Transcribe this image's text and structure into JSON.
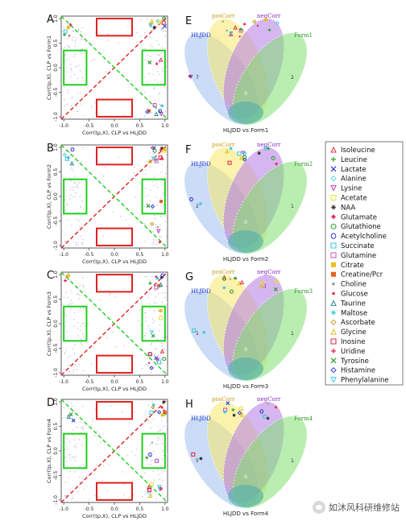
{
  "scatter_panels": [
    {
      "letter": "A",
      "xlabel": "Corr(tp,X), CLP vs HLJDD",
      "ylabel": "Corr(tp,X), CLP vs Form1",
      "ticks_x": [
        "-1.0",
        "-0.5",
        "0.0",
        "0.5",
        "1.0"
      ],
      "ticks_y": [
        "-1.0",
        "-0.5",
        "0.0",
        "0.5",
        "1.0"
      ]
    },
    {
      "letter": "B",
      "xlabel": "Corr(tp,X), CLP vs HLJDD",
      "ylabel": "Corr(tp,X), CLP vs Form2",
      "ticks_x": [
        "-1.0",
        "-0.5",
        "0.0",
        "0.5",
        "1.0"
      ],
      "ticks_y": [
        "-1.0",
        "-0.5",
        "0.0",
        "0.5",
        "1.0"
      ]
    },
    {
      "letter": "C",
      "xlabel": "Corr(tp,X), CLP vs HLJDD",
      "ylabel": "Corr(tp,X), CLP vs Form3",
      "ticks_x": [
        "-1.0",
        "-0.5",
        "0.0",
        "0.5",
        "1.0"
      ],
      "ticks_y": [
        "-1.0",
        "-0.5",
        "0.0",
        "0.5",
        "1.0"
      ]
    },
    {
      "letter": "D",
      "xlabel": "Corr(tp,X), CLP vs HLJDD",
      "ylabel": "Corr(tp,X), CLP vs Form4",
      "ticks_x": [
        "-1.0",
        "-0.5",
        "0.0",
        "0.5",
        "1.0"
      ],
      "ticks_y": [
        "-1.0",
        "-0.5",
        "0.0",
        "0.5",
        "1.0"
      ]
    }
  ],
  "venn_panels": [
    {
      "letter": "E",
      "left": "HLJDD",
      "pos": "posCorr",
      "neg": "negCorr",
      "right": "Form1",
      "caption": "HLJDD vs Form1"
    },
    {
      "letter": "F",
      "left": "HLJDD",
      "pos": "posCorr",
      "neg": "negCorr",
      "right": "Form2",
      "caption": "HLJDD vs Form2"
    },
    {
      "letter": "G",
      "left": "HLJDD",
      "pos": "posCorr",
      "neg": "negCorr",
      "right": "Form3",
      "caption": "HLJDD vs Form3"
    },
    {
      "letter": "H",
      "left": "HLJDD",
      "pos": "posCorr",
      "neg": "negCorr",
      "right": "Form4",
      "caption": "HLJDD vs Form4"
    }
  ],
  "venn_counts": [
    {
      "hljdd": "7",
      "form": "2",
      "center": "0"
    },
    {
      "hljdd": "2",
      "form": "1",
      "center": "0"
    },
    {
      "hljdd": "1",
      "form": "1",
      "center": "0"
    },
    {
      "hljdd": "5",
      "form": "1",
      "center": "0"
    }
  ],
  "legend": [
    {
      "name": "Isoleucine",
      "sym": "tri",
      "color": "#e8324a"
    },
    {
      "name": "Leucine",
      "sym": "plus",
      "color": "#2aa02a"
    },
    {
      "name": "Lactate",
      "sym": "x",
      "color": "#2e3fd0"
    },
    {
      "name": "Alanine",
      "sym": "diamond",
      "color": "#52d0e0"
    },
    {
      "name": "Lysine",
      "sym": "tridown",
      "color": "#c040c0"
    },
    {
      "name": "Acetate",
      "sym": "square",
      "color": "#e8e030"
    },
    {
      "name": "NAA",
      "sym": "star",
      "color": "#333333"
    },
    {
      "name": "Glutamate",
      "sym": "dfill",
      "color": "#e83060"
    },
    {
      "name": "Glutathione",
      "sym": "circle",
      "color": "#2a9a2a"
    },
    {
      "name": "Acetylcholine",
      "sym": "hex",
      "color": "#3a3ad8"
    },
    {
      "name": "Succinate",
      "sym": "square",
      "color": "#36c6d8"
    },
    {
      "name": "Glutamine",
      "sym": "square",
      "color": "#c050c8"
    },
    {
      "name": "Citrate",
      "sym": "sqfill",
      "color": "#e8c020"
    },
    {
      "name": "Creatine/Pcr",
      "sym": "sqfill",
      "color": "#e86020"
    },
    {
      "name": "Choline",
      "sym": "dot",
      "color": "#999999"
    },
    {
      "name": "Glucose",
      "sym": "dot",
      "color": "#e03050"
    },
    {
      "name": "Taurine",
      "sym": "tri",
      "color": "#2a8a8a"
    },
    {
      "name": "Maltose",
      "sym": "star",
      "color": "#40c8e0"
    },
    {
      "name": "Ascorbate",
      "sym": "diamond",
      "color": "#c0a020"
    },
    {
      "name": "Glycine",
      "sym": "tri",
      "color": "#e0c020"
    },
    {
      "name": "Inosine",
      "sym": "square",
      "color": "#e02040"
    },
    {
      "name": "Uridine",
      "sym": "plus",
      "color": "#e02040"
    },
    {
      "name": "Tyrosine",
      "sym": "x",
      "color": "#2a9a2a"
    },
    {
      "name": "Histamine",
      "sym": "diamond",
      "color": "#2a3ad0"
    },
    {
      "name": "Phenylalanine",
      "sym": "tridown",
      "color": "#40c8e0"
    }
  ],
  "watermark": "如沐风科研维修站",
  "colors": {
    "red_box": "#e02020",
    "green_box": "#1fcf1f",
    "diag_red": "#e02020",
    "diag_green": "#1fcf1f",
    "ell_blue": "#9fc0ee",
    "ell_yellow": "#f7ea6a",
    "ell_purple": "#b47ae6",
    "ell_green": "#7fe070"
  }
}
